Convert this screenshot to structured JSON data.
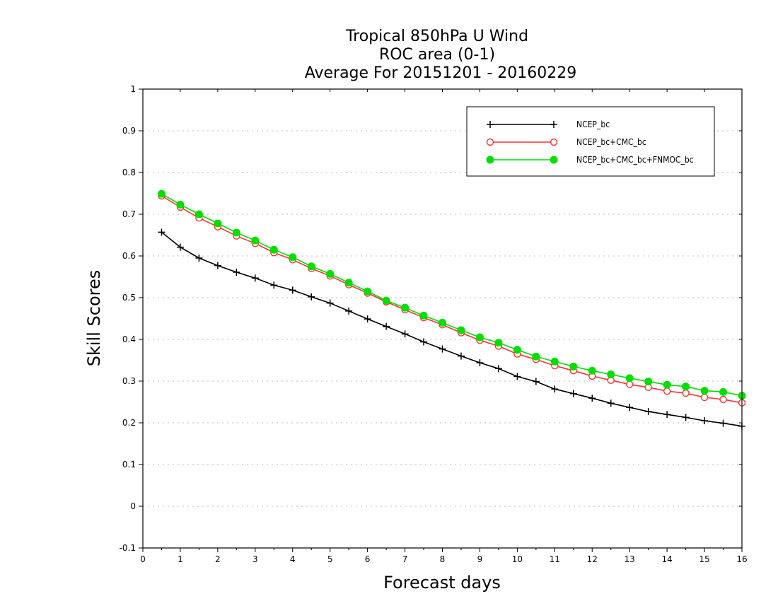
{
  "chart_data": {
    "type": "line",
    "title_lines": [
      "Tropical 850hPa U Wind",
      "ROC area (0-1)",
      "Average For 20151201 - 20160229"
    ],
    "xlabel": "Forecast days",
    "ylabel": "Skill Scores",
    "xlim": [
      0,
      16
    ],
    "ylim": [
      -0.1,
      1
    ],
    "x_ticks": [
      0,
      1,
      2,
      3,
      4,
      5,
      6,
      7,
      8,
      9,
      10,
      11,
      12,
      13,
      14,
      15,
      16
    ],
    "x_tick_labels": [
      "0",
      "1",
      "2",
      "3",
      "4",
      "5",
      "6",
      "7",
      "8",
      "9",
      "10",
      "11",
      "12",
      "13",
      "14",
      "15",
      "16"
    ],
    "y_ticks": [
      -0.1,
      0,
      0.1,
      0.2,
      0.3,
      0.4,
      0.5,
      0.6,
      0.7,
      0.8,
      0.9,
      1
    ],
    "y_tick_labels": [
      "-0.1",
      "0",
      "0.1",
      "0.2",
      "0.3",
      "0.4",
      "0.5",
      "0.6",
      "0.7",
      "0.8",
      "0.9",
      "1"
    ],
    "grid": "horizontal dotted",
    "legend_position": "top-right",
    "x": [
      0.5,
      1,
      1.5,
      2,
      2.5,
      3,
      3.5,
      4,
      4.5,
      5,
      5.5,
      6,
      6.5,
      7,
      7.5,
      8,
      8.5,
      9,
      9.5,
      10,
      10.5,
      11,
      11.5,
      12,
      12.5,
      13,
      13.5,
      14,
      14.5,
      15,
      15.5,
      16
    ],
    "series": [
      {
        "name": "NCEP_bc",
        "color": "#000000",
        "marker": "plus",
        "values": [
          0.657,
          0.621,
          0.595,
          0.577,
          0.561,
          0.547,
          0.53,
          0.518,
          0.502,
          0.487,
          0.468,
          0.449,
          0.431,
          0.413,
          0.394,
          0.377,
          0.36,
          0.344,
          0.33,
          0.311,
          0.299,
          0.281,
          0.27,
          0.259,
          0.247,
          0.237,
          0.227,
          0.22,
          0.213,
          0.205,
          0.199,
          0.192
        ]
      },
      {
        "name": "NCEP_bc+CMC_bc",
        "color": "#ff3030",
        "marker": "open-circle",
        "values": [
          0.744,
          0.717,
          0.691,
          0.67,
          0.648,
          0.63,
          0.608,
          0.591,
          0.57,
          0.552,
          0.531,
          0.511,
          0.49,
          0.471,
          0.452,
          0.435,
          0.416,
          0.398,
          0.384,
          0.365,
          0.352,
          0.337,
          0.325,
          0.312,
          0.302,
          0.292,
          0.285,
          0.276,
          0.271,
          0.261,
          0.256,
          0.248
        ]
      },
      {
        "name": "NCEP_bc+CMC_bc+FNMOC_bc",
        "color": "#00e000",
        "marker": "filled-circle",
        "values": [
          0.749,
          0.723,
          0.7,
          0.678,
          0.656,
          0.637,
          0.615,
          0.597,
          0.575,
          0.557,
          0.536,
          0.515,
          0.493,
          0.476,
          0.457,
          0.44,
          0.422,
          0.405,
          0.392,
          0.375,
          0.359,
          0.347,
          0.335,
          0.325,
          0.316,
          0.307,
          0.299,
          0.291,
          0.287,
          0.277,
          0.274,
          0.265
        ]
      }
    ]
  }
}
